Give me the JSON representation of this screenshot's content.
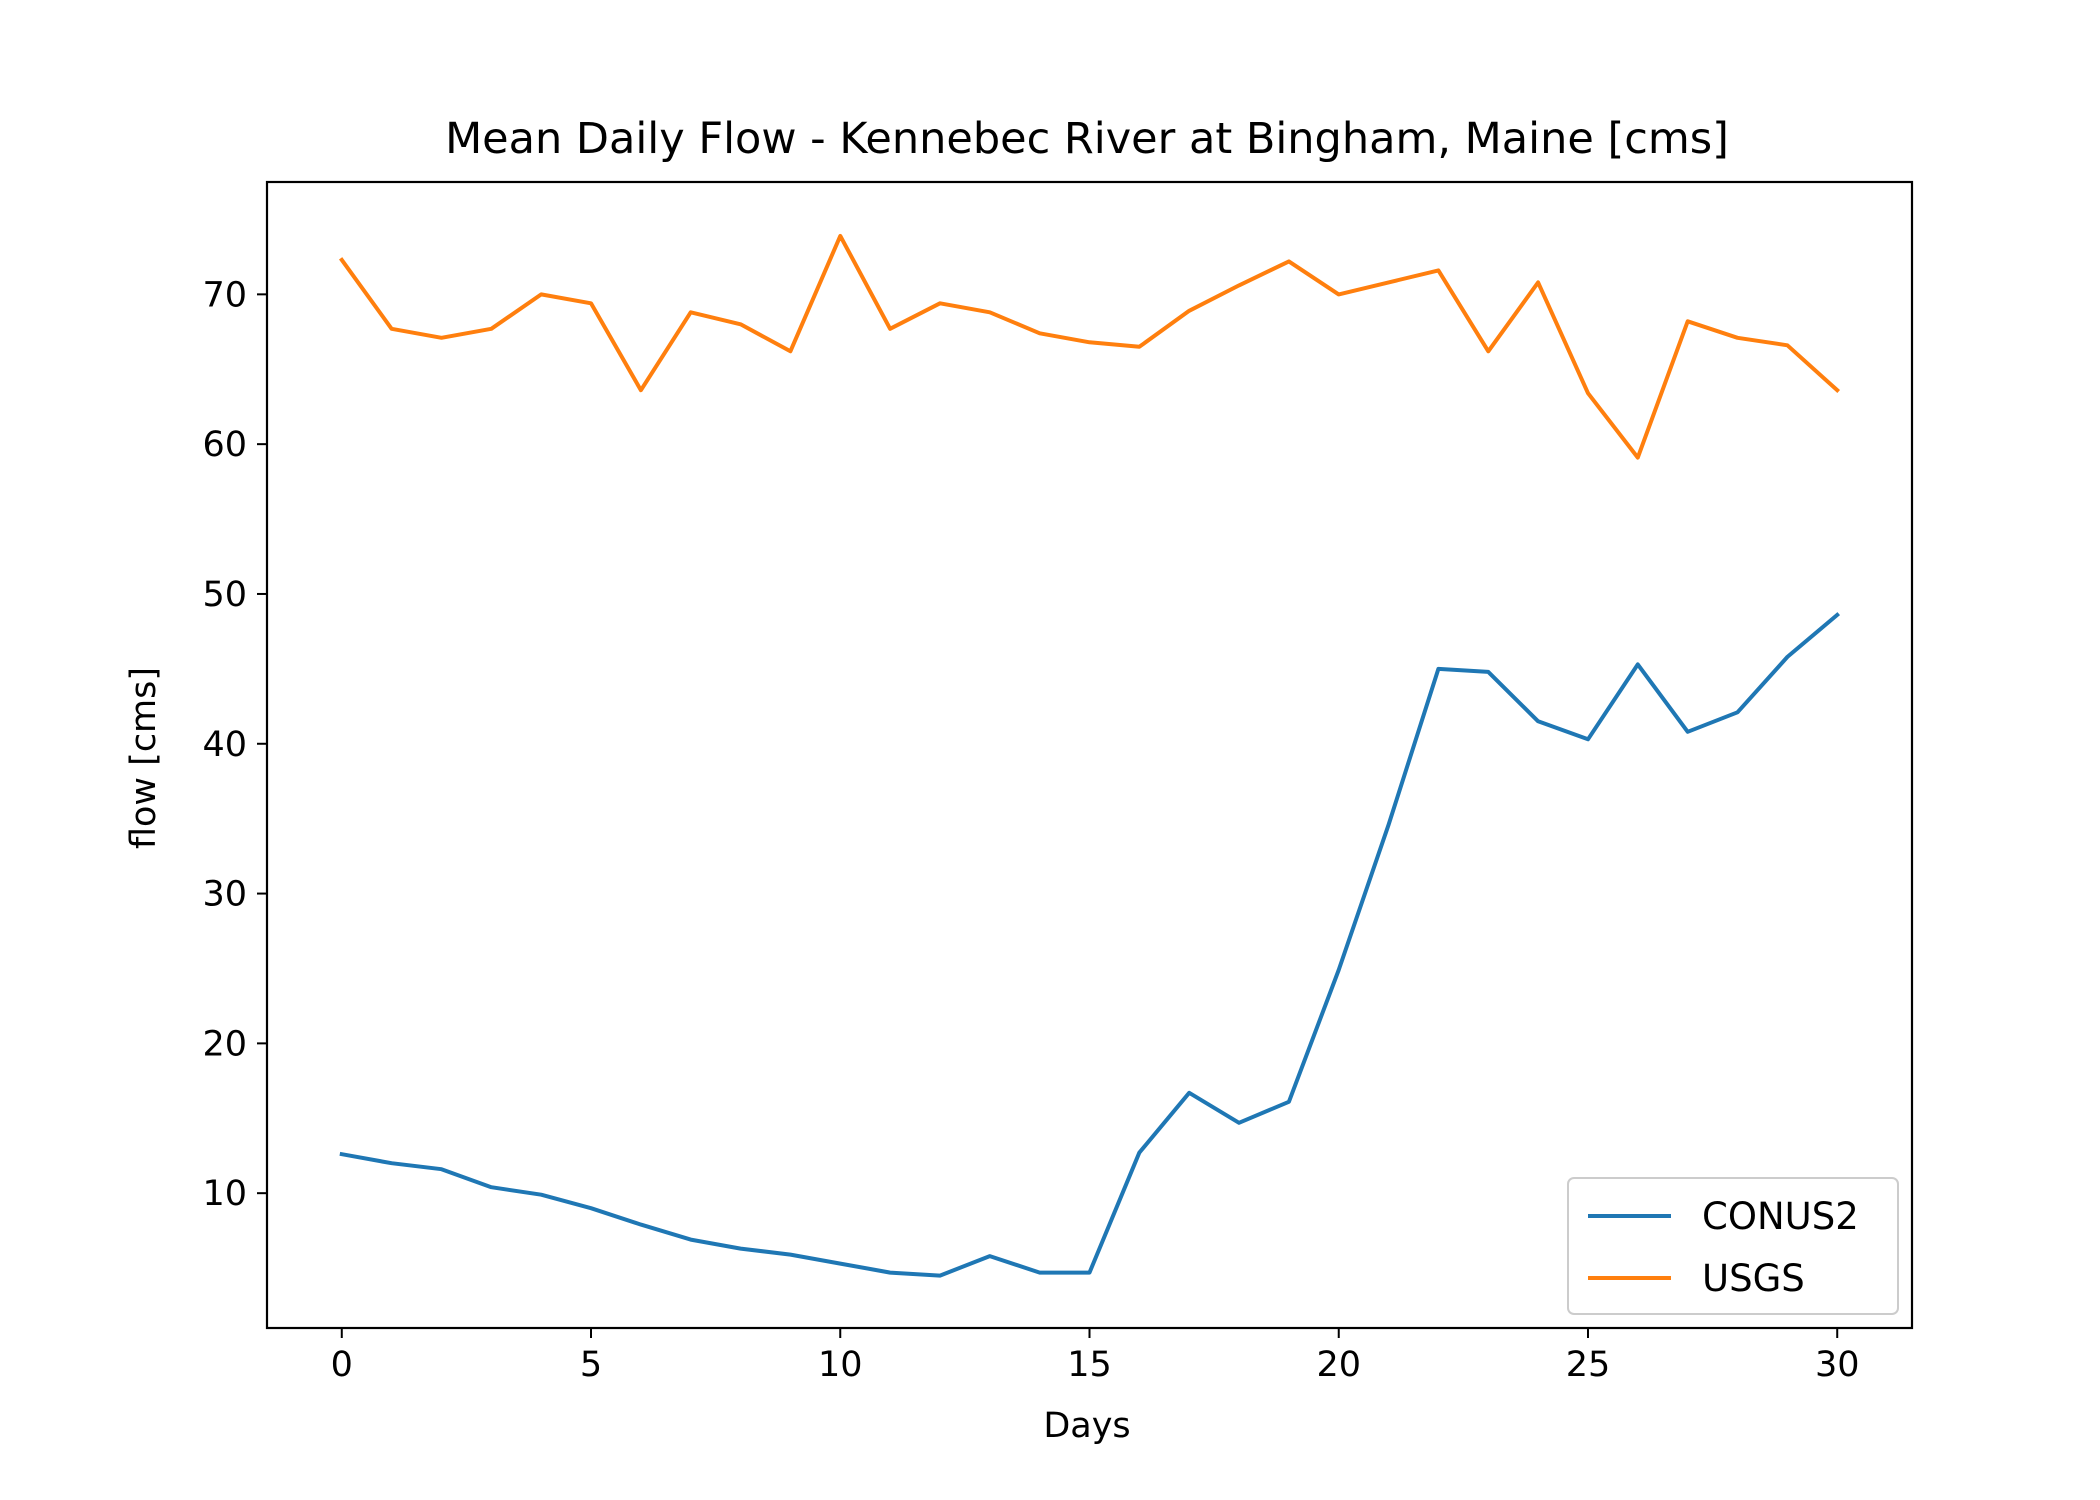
{
  "chart_data": {
    "type": "line",
    "title": "Mean Daily Flow - Kennebec River at Bingham, Maine [cms]",
    "xlabel": "Days",
    "ylabel": "flow [cms]",
    "xlim": [
      -1.5,
      31.5
    ],
    "ylim": [
      1.0,
      77.5
    ],
    "xticks": [
      0,
      5,
      10,
      15,
      20,
      25,
      30
    ],
    "yticks": [
      10,
      20,
      30,
      40,
      50,
      60,
      70
    ],
    "grid": false,
    "legend_position": "lower-right",
    "x": [
      0,
      1,
      2,
      3,
      4,
      5,
      6,
      7,
      8,
      9,
      10,
      11,
      12,
      13,
      14,
      15,
      16,
      17,
      18,
      19,
      20,
      21,
      22,
      23,
      24,
      25,
      26,
      27,
      28,
      29,
      30
    ],
    "series": [
      {
        "name": "CONUS2",
        "color": "#1f77b4",
        "values": [
          12.6,
          12.0,
          11.6,
          10.4,
          9.9,
          9.0,
          7.9,
          6.9,
          6.3,
          5.9,
          5.3,
          4.7,
          4.5,
          5.8,
          4.7,
          4.7,
          12.7,
          16.7,
          14.7,
          16.1,
          24.9,
          34.6,
          45.0,
          44.8,
          41.5,
          40.3,
          45.3,
          40.8,
          42.1,
          45.8,
          48.6
        ]
      },
      {
        "name": "USGS",
        "color": "#ff7f0e",
        "values": [
          72.3,
          67.7,
          67.1,
          67.7,
          70.0,
          69.4,
          63.6,
          68.8,
          68.0,
          66.2,
          73.9,
          67.7,
          69.4,
          68.8,
          67.4,
          66.8,
          66.5,
          68.9,
          70.6,
          72.2,
          70.0,
          70.8,
          71.6,
          66.2,
          70.8,
          63.4,
          59.1,
          68.2,
          67.1,
          66.6,
          63.6
        ]
      }
    ]
  }
}
